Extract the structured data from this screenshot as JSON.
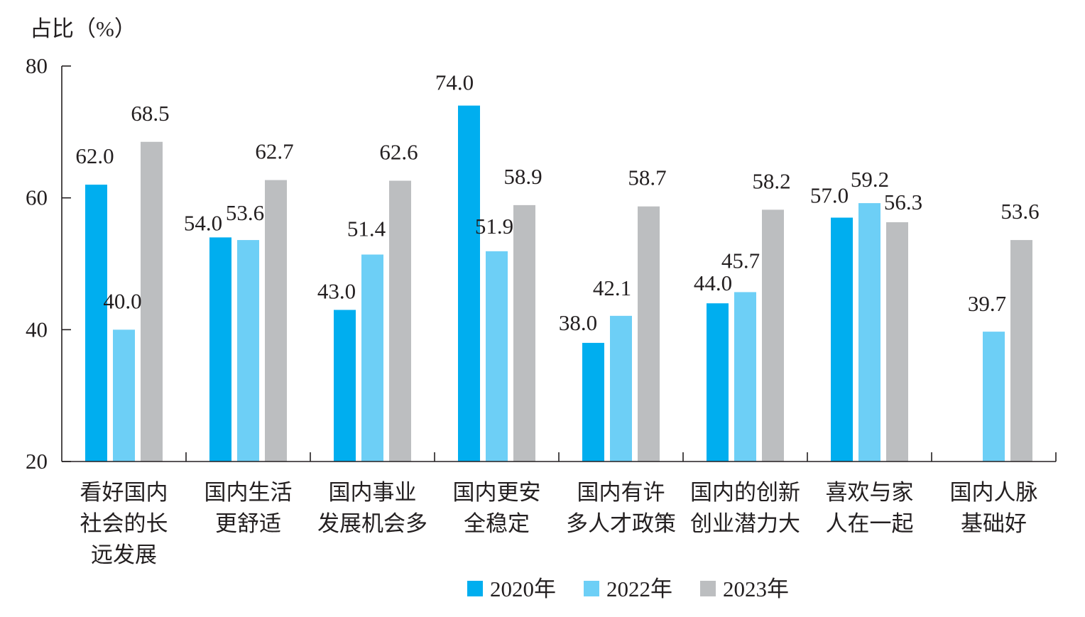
{
  "chart_data": {
    "type": "bar",
    "ylabel": "占比（%）",
    "ylim": [
      20,
      80
    ],
    "yticks": [
      20,
      40,
      60,
      80
    ],
    "grid": false,
    "legend": "bottom",
    "axis_color": "#231f20",
    "categories": [
      [
        "看好国内",
        "社会的长",
        "远发展"
      ],
      [
        "国内生活",
        "更舒适"
      ],
      [
        "国内事业",
        "发展机会多"
      ],
      [
        "国内更安",
        "全稳定"
      ],
      [
        "国内有许",
        "多人才政策"
      ],
      [
        "国内的创新",
        "创业潜力大"
      ],
      [
        "喜欢与家",
        "人在一起"
      ],
      [
        "国内人脉",
        "基础好"
      ]
    ],
    "series": [
      {
        "name": "2020年",
        "color": "#00aeef",
        "values": [
          62.0,
          54.0,
          43.0,
          74.0,
          38.0,
          44.0,
          57.0,
          null
        ],
        "labels": [
          "62.0",
          "54.0",
          "43.0",
          "74.0",
          "38.0",
          "44.0",
          "57.0",
          null
        ]
      },
      {
        "name": "2022年",
        "color": "#6dcff6",
        "values": [
          40.0,
          53.6,
          51.4,
          51.9,
          42.1,
          45.7,
          59.2,
          39.7
        ],
        "labels": [
          "40.0",
          "53.6",
          "51.4",
          "51.9",
          "42.1",
          "45.7",
          "59.2",
          "39.7"
        ]
      },
      {
        "name": "2023年",
        "color": "#bcbec0",
        "values": [
          68.5,
          62.7,
          62.6,
          58.9,
          58.7,
          58.2,
          56.3,
          53.6
        ],
        "labels": [
          "68.5",
          "62.7",
          "62.6",
          "58.9",
          "58.7",
          "58.2",
          "56.3",
          "53.6"
        ]
      }
    ]
  }
}
